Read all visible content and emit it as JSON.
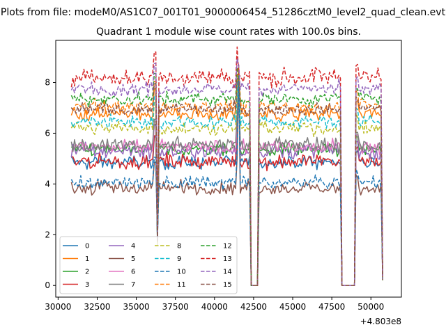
{
  "figure": {
    "suptitle": "Plots from file: modeM0/AS1C07_001T01_9000006454_51286cztM0_level2_quad_clean.evt"
  },
  "chart_data": {
    "type": "line",
    "title": "Quadrant 1 module wise count rates with 100.0s bins.",
    "xlabel": "",
    "ylabel": "",
    "x_offset_label": "+4.803e8",
    "x_offset": 480300000,
    "xlim": [
      29850,
      51950
    ],
    "ylim": [
      -0.46,
      9.66
    ],
    "x_ticks": [
      30000,
      32500,
      35000,
      37500,
      40000,
      42500,
      45000,
      47500,
      50000
    ],
    "x_tick_labels": [
      "30000",
      "32500",
      "35000",
      "37500",
      "40000",
      "42500",
      "45000",
      "47500",
      "50000"
    ],
    "y_ticks": [
      0,
      2,
      4,
      6,
      8
    ],
    "y_tick_labels": [
      "0",
      "2",
      "4",
      "6",
      "8"
    ],
    "grid": false,
    "legend_placement": "lower-left",
    "legend_columns": 4,
    "bin_seconds": 100,
    "x_start": 30850,
    "x_end": 50750,
    "gaps": [
      {
        "x_start": 42300,
        "x_end": 42750,
        "level": 0.0
      },
      {
        "x_start": 48100,
        "x_end": 49000,
        "level": 0.0
      }
    ],
    "dips": [
      {
        "x": 36300,
        "value": 1.9
      },
      {
        "x": 41550,
        "value": 8.4
      }
    ],
    "series": [
      {
        "name": "0",
        "style": "solid",
        "color": "#1f77b4",
        "mean": 4.85,
        "noise": 0.22
      },
      {
        "name": "1",
        "style": "solid",
        "color": "#ff7f0e",
        "mean": 6.75,
        "noise": 0.22
      },
      {
        "name": "2",
        "style": "solid",
        "color": "#2ca02c",
        "mean": 5.35,
        "noise": 0.22
      },
      {
        "name": "3",
        "style": "solid",
        "color": "#d62728",
        "mean": 4.9,
        "noise": 0.25
      },
      {
        "name": "4",
        "style": "solid",
        "color": "#9467bd",
        "mean": 5.3,
        "noise": 0.25
      },
      {
        "name": "5",
        "style": "solid",
        "color": "#8c564b",
        "mean": 3.85,
        "noise": 0.22
      },
      {
        "name": "6",
        "style": "solid",
        "color": "#e377c2",
        "mean": 5.45,
        "noise": 0.22
      },
      {
        "name": "7",
        "style": "solid",
        "color": "#7f7f7f",
        "mean": 5.55,
        "noise": 0.25
      },
      {
        "name": "8",
        "style": "dashed",
        "color": "#bcbd22",
        "mean": 6.2,
        "noise": 0.22
      },
      {
        "name": "9",
        "style": "dashed",
        "color": "#17becf",
        "mean": 6.45,
        "noise": 0.22
      },
      {
        "name": "10",
        "style": "dashed",
        "color": "#1f77b4",
        "mean": 4.05,
        "noise": 0.2
      },
      {
        "name": "11",
        "style": "dashed",
        "color": "#ff7f0e",
        "mean": 7.05,
        "noise": 0.22
      },
      {
        "name": "12",
        "style": "dashed",
        "color": "#2ca02c",
        "mean": 7.35,
        "noise": 0.22
      },
      {
        "name": "13",
        "style": "dashed",
        "color": "#d62728",
        "mean": 8.2,
        "noise": 0.3
      },
      {
        "name": "14",
        "style": "dashed",
        "color": "#9467bd",
        "mean": 7.75,
        "noise": 0.22
      },
      {
        "name": "15",
        "style": "dashed",
        "color": "#8c564b",
        "mean": 6.95,
        "noise": 0.22
      }
    ]
  }
}
